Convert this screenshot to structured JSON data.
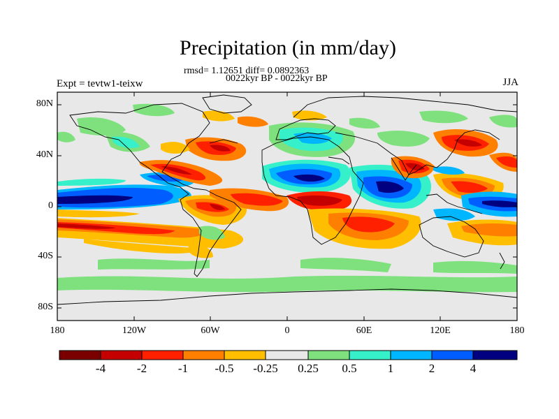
{
  "title": "Precipitation (in mm/day)",
  "stats": "rmsd= 1.12651 diff= 0.0892363",
  "period": "0022kyr BP - 0022kyr BP",
  "experiment": "Expt = tevtw1-teixw",
  "season": "JJA",
  "lat_labels": [
    "80N",
    "40N",
    "0",
    "40S",
    "80S"
  ],
  "lon_labels": [
    "180",
    "120W",
    "60W",
    "0",
    "60E",
    "120E",
    "180"
  ],
  "colorbar": {
    "labels": [
      "-4",
      "-2",
      "-1",
      "-0.5",
      "-0.25",
      "0.25",
      "0.5",
      "1",
      "2",
      "4"
    ],
    "colors": [
      "#7a0000",
      "#c40000",
      "#ff2000",
      "#ff7f00",
      "#ffbf00",
      "#e8e8e8",
      "#7ee17e",
      "#35f0c8",
      "#00b6ff",
      "#005dff",
      "#000080"
    ]
  }
}
